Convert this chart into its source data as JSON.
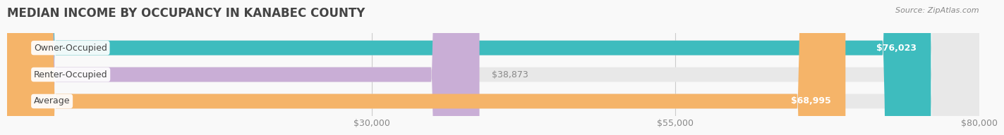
{
  "title": "MEDIAN INCOME BY OCCUPANCY IN KANABEC COUNTY",
  "source": "Source: ZipAtlas.com",
  "categories": [
    "Owner-Occupied",
    "Renter-Occupied",
    "Average"
  ],
  "values": [
    76023,
    38873,
    68995
  ],
  "bar_colors": [
    "#3ebcbe",
    "#c9aed6",
    "#f5b469"
  ],
  "bar_bg_color": "#eeeeee",
  "label_colors": [
    "#ffffff",
    "#888888",
    "#ffffff"
  ],
  "background_color": "#f9f9f9",
  "xlim": [
    0,
    80000
  ],
  "xticks": [
    30000,
    55000,
    80000
  ],
  "xtick_labels": [
    "$30,000",
    "$55,000",
    "$80,000"
  ],
  "title_fontsize": 12,
  "tick_fontsize": 9,
  "bar_label_fontsize": 9,
  "category_fontsize": 9,
  "value_labels": [
    "$76,023",
    "$38,873",
    "$68,995"
  ]
}
